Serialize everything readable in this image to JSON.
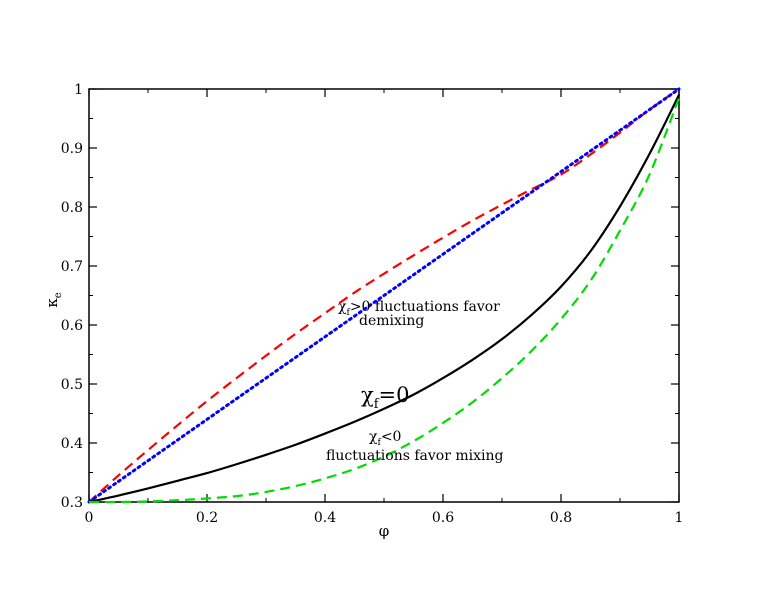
{
  "chart_data": {
    "type": "line",
    "title": "",
    "xlabel": "φ",
    "ylabel_main": "κ",
    "ylabel_sub": "e",
    "xlim": [
      0,
      1
    ],
    "ylim": [
      0.3,
      1
    ],
    "grid": false,
    "x_ticks": [
      0,
      0.2,
      0.4,
      0.6,
      0.8,
      1
    ],
    "x_tick_labels": [
      "0",
      "0.2",
      "0.4",
      "0.6",
      "0.8",
      "1"
    ],
    "y_ticks": [
      0.3,
      0.4,
      0.5,
      0.6,
      0.7,
      0.8,
      0.9,
      1
    ],
    "y_tick_labels": [
      "0.3",
      "0.4",
      "0.5",
      "0.6",
      "0.7",
      "0.8",
      "0.9",
      "1"
    ],
    "x": [
      0,
      0.05,
      0.1,
      0.15,
      0.2,
      0.25,
      0.3,
      0.35,
      0.4,
      0.45,
      0.5,
      0.55,
      0.6,
      0.65,
      0.7,
      0.75,
      0.8,
      0.85,
      0.9,
      0.95,
      1
    ],
    "series": [
      {
        "color": "#ff0000",
        "style": "dashed",
        "values": [
          0.3,
          0.345,
          0.388,
          0.43,
          0.471,
          0.51,
          0.548,
          0.585,
          0.62,
          0.655,
          0.687,
          0.718,
          0.748,
          0.777,
          0.804,
          0.83,
          0.855,
          0.889,
          0.926,
          0.965,
          1.0
        ]
      },
      {
        "color": "#0000ff",
        "style": "dotted",
        "values": [
          0.3,
          0.335,
          0.37,
          0.405,
          0.44,
          0.475,
          0.51,
          0.545,
          0.58,
          0.615,
          0.65,
          0.685,
          0.72,
          0.755,
          0.79,
          0.825,
          0.86,
          0.895,
          0.93,
          0.965,
          1.0
        ]
      },
      {
        "color": "#000000",
        "style": "solid",
        "values": [
          0.3,
          0.311,
          0.323,
          0.336,
          0.349,
          0.364,
          0.38,
          0.397,
          0.416,
          0.436,
          0.458,
          0.482,
          0.51,
          0.541,
          0.576,
          0.617,
          0.665,
          0.725,
          0.801,
          0.89,
          0.99
        ]
      },
      {
        "color": "#00dd00",
        "style": "dashed",
        "values": [
          0.3,
          0.3,
          0.301,
          0.303,
          0.306,
          0.31,
          0.317,
          0.327,
          0.34,
          0.356,
          0.377,
          0.403,
          0.434,
          0.469,
          0.51,
          0.556,
          0.61,
          0.675,
          0.76,
          0.855,
          0.985
        ]
      }
    ],
    "annotations": [
      {
        "main": "χ",
        "sub": "f",
        "rest": ">0 fluctuations favor"
      },
      {
        "text": "demixing"
      },
      {
        "main": "χ",
        "sub": "f",
        "rest": "=0"
      },
      {
        "main": "χ",
        "sub": "f",
        "rest": "<0"
      },
      {
        "text": "fluctuations favor mixing"
      }
    ]
  }
}
